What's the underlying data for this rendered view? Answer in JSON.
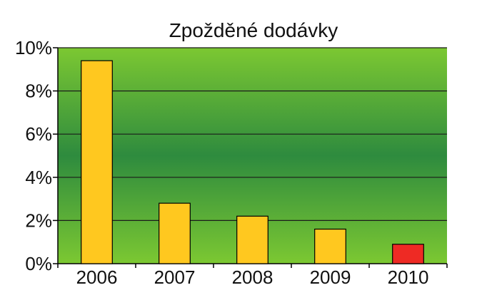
{
  "chart_data": {
    "type": "bar",
    "title": "Zpožděné dodávky",
    "categories": [
      "2006",
      "2007",
      "2008",
      "2009",
      "2010"
    ],
    "values": [
      9.4,
      2.8,
      2.2,
      1.6,
      0.9
    ],
    "value_unit": "%",
    "ylim": [
      0,
      10
    ],
    "yticks": [
      0,
      2,
      4,
      6,
      8,
      10
    ],
    "ytick_labels": [
      "0%",
      "2%",
      "4%",
      "6%",
      "8%",
      "10%"
    ],
    "grid": true,
    "legend": "none",
    "colors": {
      "bar_default": "#ffc81f",
      "bar_highlight": "#ee2a24",
      "highlight_categories": [
        "2010"
      ],
      "background_outer": "#7cc832",
      "background_center": "#2e8b3e",
      "gridline": "#1a1a1a"
    }
  }
}
